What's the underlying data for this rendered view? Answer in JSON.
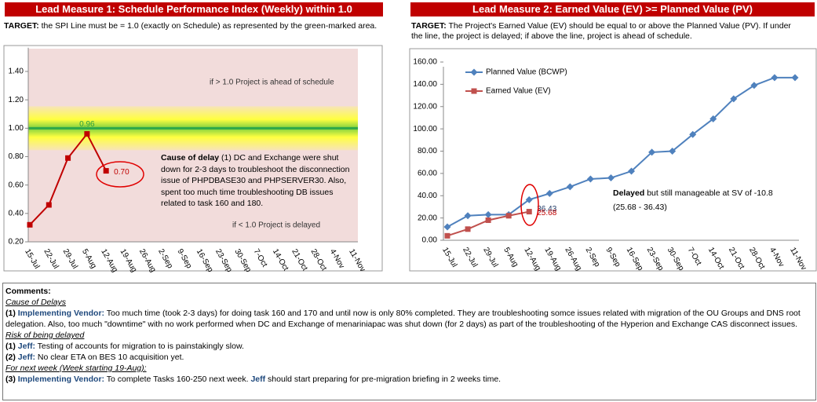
{
  "panels": [
    {
      "header": "Lead Measure 1: Schedule Performance Index (Weekly) within 1.0",
      "target_label": "TARGET:",
      "target_text": "the SPI Line must be = 1.0 (exactly on Schedule) as represented by the green-marked area."
    },
    {
      "header": "Lead Measure 2: Earned Value (EV) >= Planned Value (PV)",
      "target_label": "TARGET:",
      "target_text": "The Project's Earned Value (EV) should be equal to or above the Planned Value (PV). If under the line, the project is delayed; if above the line, project is ahead of schedule."
    }
  ],
  "chart_data": [
    {
      "type": "line",
      "categories": [
        "15-Jul",
        "22-Jul",
        "29-Jul",
        "5-Aug",
        "12-Aug",
        "19-Aug",
        "26-Aug",
        "2-Sep",
        "9-Sep",
        "16-Sep",
        "23-Sep",
        "30-Sep",
        "7-Oct",
        "14-Oct",
        "21-Oct",
        "28-Oct",
        "4-Nov",
        "11-Nov"
      ],
      "series": [
        {
          "color": "#c00000",
          "marker": "square",
          "values": [
            0.32,
            0.46,
            0.79,
            0.96,
            0.7,
            null,
            null,
            null,
            null,
            null,
            null,
            null,
            null,
            null,
            null,
            null,
            null,
            null
          ],
          "value_labels": [
            null,
            null,
            null,
            "0.96",
            "0.70",
            null,
            null,
            null,
            null,
            null,
            null,
            null,
            null,
            null,
            null,
            null,
            null,
            null
          ],
          "value_label_colors": [
            null,
            null,
            null,
            "#2e9e3e",
            "#c00000",
            null,
            null,
            null,
            null,
            null,
            null,
            null,
            null,
            null,
            null,
            null,
            null,
            null
          ]
        }
      ],
      "ylim": [
        0.2,
        1.6
      ],
      "yticks": [
        {
          "value": 0.2,
          "label": "0.20"
        },
        {
          "value": 0.4,
          "label": "0.40"
        },
        {
          "value": 0.6,
          "label": "0.60"
        },
        {
          "value": 0.8,
          "label": "0.80"
        },
        {
          "value": 1.0,
          "label": "1.00"
        },
        {
          "value": 1.2,
          "label": "1.20"
        },
        {
          "value": 1.4,
          "label": "1.40"
        }
      ],
      "target": 1.0,
      "annotations": [
        "if > 1.0 Project is ahead of schedule",
        "if <  1.0 Project is delayed"
      ],
      "note": {
        "bold": "Cause of delay",
        "text": "(1) DC and Exchange were shut down for 2-3 days to troubleshoot the disconnection issue of PHPDBASE30 and PHPSERVER30. Also, spent too much time troubleshooting DB issues related to task 160 and 180."
      }
    },
    {
      "type": "line",
      "categories": [
        "15-Jul",
        "22-Jul",
        "29-Jul",
        "5-Aug",
        "12-Aug",
        "19-Aug",
        "26-Aug",
        "2-Sep",
        "9-Sep",
        "16-Sep",
        "23-Sep",
        "30-Sep",
        "7-Oct",
        "14-Oct",
        "21-Oct",
        "28-Oct",
        "4-Nov",
        "11-Nov"
      ],
      "legend": "top-left",
      "series": [
        {
          "name": "Planned Value (BCWP)",
          "color": "#4f81bd",
          "marker": "diamond",
          "values": [
            12,
            22,
            23,
            23,
            36.43,
            42,
            48,
            55,
            56,
            62,
            79,
            80,
            95,
            109,
            127,
            139,
            146,
            146
          ],
          "value_labels": [
            null,
            null,
            null,
            null,
            "36.43",
            null,
            null,
            null,
            null,
            null,
            null,
            null,
            null,
            null,
            null,
            null,
            null,
            null
          ],
          "value_label_colors": [
            null,
            null,
            null,
            null,
            "#1f3864",
            null,
            null,
            null,
            null,
            null,
            null,
            null,
            null,
            null,
            null,
            null,
            null,
            null
          ]
        },
        {
          "name": "Earned Value (EV)",
          "color": "#c0504d",
          "marker": "square",
          "values": [
            4,
            10,
            18,
            22,
            25.68,
            null,
            null,
            null,
            null,
            null,
            null,
            null,
            null,
            null,
            null,
            null,
            null,
            null
          ],
          "value_labels": [
            null,
            null,
            null,
            null,
            "25.68",
            null,
            null,
            null,
            null,
            null,
            null,
            null,
            null,
            null,
            null,
            null,
            null,
            null
          ],
          "value_label_colors": [
            null,
            null,
            null,
            null,
            "#c00000",
            null,
            null,
            null,
            null,
            null,
            null,
            null,
            null,
            null,
            null,
            null,
            null,
            null
          ]
        }
      ],
      "ylim": [
        0,
        160
      ],
      "yticks": [
        {
          "value": 0,
          "label": "0.00"
        },
        {
          "value": 20,
          "label": "20.00"
        },
        {
          "value": 40,
          "label": "40.00"
        },
        {
          "value": 60,
          "label": "60.00"
        },
        {
          "value": 80,
          "label": "80.00"
        },
        {
          "value": 100,
          "label": "100.00"
        },
        {
          "value": 120,
          "label": "120.00"
        },
        {
          "value": 140,
          "label": "140.00"
        },
        {
          "value": 160,
          "label": "160.00"
        }
      ],
      "note": {
        "bold": "Delayed",
        "text": "but still manageable at SV of -10.8",
        "line2": "(25.68 - 36.43)"
      }
    }
  ],
  "comments": {
    "title": "Comments:",
    "cause_heading": "Cause of Delays",
    "cause_1": {
      "number": "(1)",
      "name": "Implementing Vendor:",
      "text": "Too much time (took 2-3 days) for doing task 160 and 170 and until now is only 80% completed. They are troubleshooting somce issues related with migration of the OU Groups and DNS root delegation. Also, too much \"downtime\" with no work performed when DC and Exchange of menariniapac was shut down (for 2 days) as part of the troubleshooting of the Hyperion and Exchange CAS disconnect issues."
    },
    "risk_heading": "Risk of being delayed",
    "risk_1": {
      "number": "(1)",
      "name": "Jeff:",
      "text": "Testing of accounts for migration to is painstakingly slow."
    },
    "risk_2": {
      "number": "(2)",
      "name": "Jeff:",
      "text": "No clear ETA on BES 10 acquisition yet."
    },
    "next_heading": "For next week (Week starting 19-Aug):",
    "next_3": {
      "number": "(3)",
      "name": "Implementing Vendor:",
      "text": "To complete Tasks 160-250 next week.",
      "name2": "Jeff",
      "text2": "should start preparing for pre-migration briefing in 2 weeks time."
    }
  }
}
